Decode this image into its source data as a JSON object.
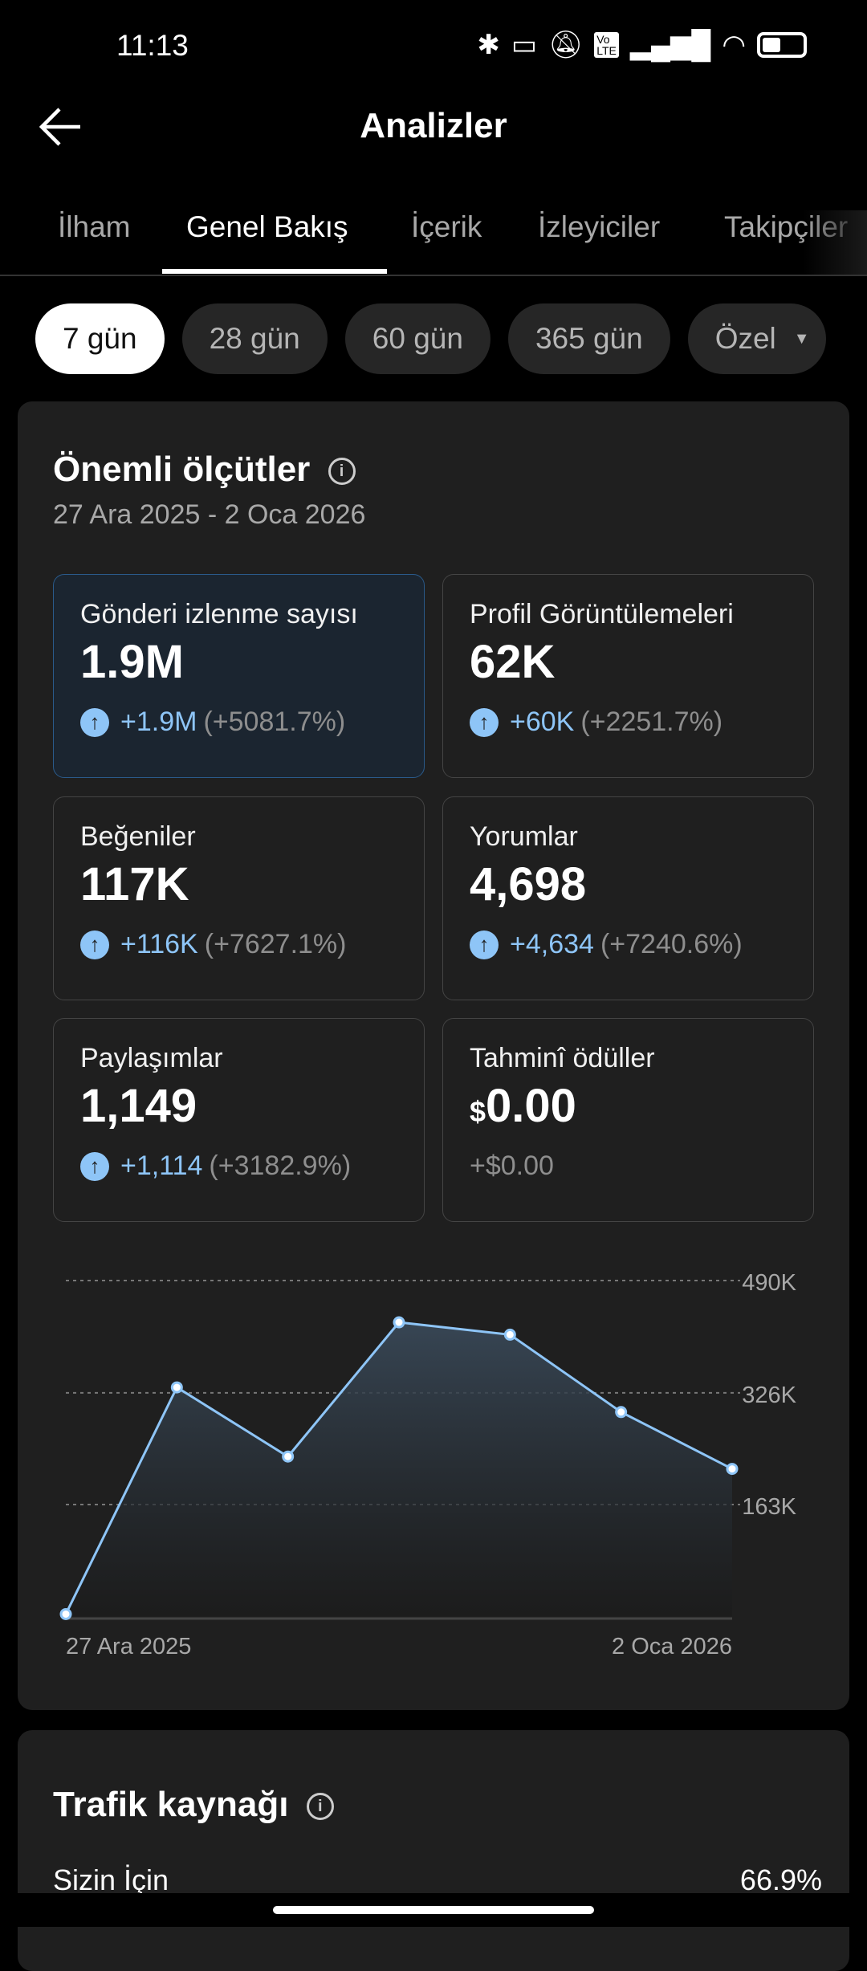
{
  "status_bar": {
    "time": "11:13",
    "icons": [
      "bluetooth-icon",
      "vibrate-icon",
      "bell-off-icon",
      "volte-icon",
      "signal-icon",
      "wifi-icon",
      "battery-icon"
    ]
  },
  "header": {
    "title": "Analizler"
  },
  "tabs": [
    {
      "label": "İlham"
    },
    {
      "label": "Genel Bakış",
      "active": true
    },
    {
      "label": "İçerik"
    },
    {
      "label": "İzleyiciler"
    },
    {
      "label": "Takipçiler"
    }
  ],
  "ranges": [
    {
      "label": "7 gün",
      "active": true
    },
    {
      "label": "28 gün"
    },
    {
      "label": "60 gün"
    },
    {
      "label": "365 gün"
    },
    {
      "label": "Özel"
    }
  ],
  "key_metrics": {
    "title": "Önemli ölçütler",
    "date_range": "27 Ara 2025 - 2 Oca 2026",
    "cards": [
      {
        "label": "Gönderi izlenme sayısı",
        "value": "1.9M",
        "delta": "+1.9M",
        "pct": "(+5081.7%)"
      },
      {
        "label": "Profil Görüntülemeleri",
        "value": "62K",
        "delta": "+60K",
        "pct": "(+2251.7%)"
      },
      {
        "label": "Beğeniler",
        "value": "117K",
        "delta": "+116K",
        "pct": "(+7627.1%)"
      },
      {
        "label": "Yorumlar",
        "value": "4,698",
        "delta": "+4,634",
        "pct": "(+7240.6%)"
      },
      {
        "label": "Paylaşımlar",
        "value": "1,149",
        "delta": "+1,114",
        "pct": "(+3182.9%)"
      },
      {
        "label": "Tahminî ödüller",
        "currency": "$",
        "value": "0.00",
        "delta": "+$0.00"
      }
    ]
  },
  "chart_data": {
    "type": "area",
    "x": [
      "27 Ara 2025",
      "28 Ara 2025",
      "29 Ara 2025",
      "30 Ara 2025",
      "31 Ara 2025",
      "1 Oca 2026",
      "2 Oca 2026"
    ],
    "values": [
      3000,
      334000,
      233000,
      429000,
      411000,
      298000,
      215000
    ],
    "x_tick_labels": [
      "27 Ara 2025",
      "2 Oca 2026"
    ],
    "y_ticks": [
      {
        "value": 163000,
        "label": "163K"
      },
      {
        "value": 326000,
        "label": "326K"
      },
      {
        "value": 490000,
        "label": "490K"
      }
    ],
    "ylim": [
      0,
      490000
    ],
    "grid": true,
    "line_color": "#8ec5f7"
  },
  "traffic": {
    "title": "Trafik kaynağı",
    "rows": [
      {
        "label": "Sizin İçin",
        "value": "66.9%"
      }
    ]
  },
  "colors": {
    "accent": "#8ec5f7",
    "background": "#000000",
    "card": "#1f1f1f"
  }
}
